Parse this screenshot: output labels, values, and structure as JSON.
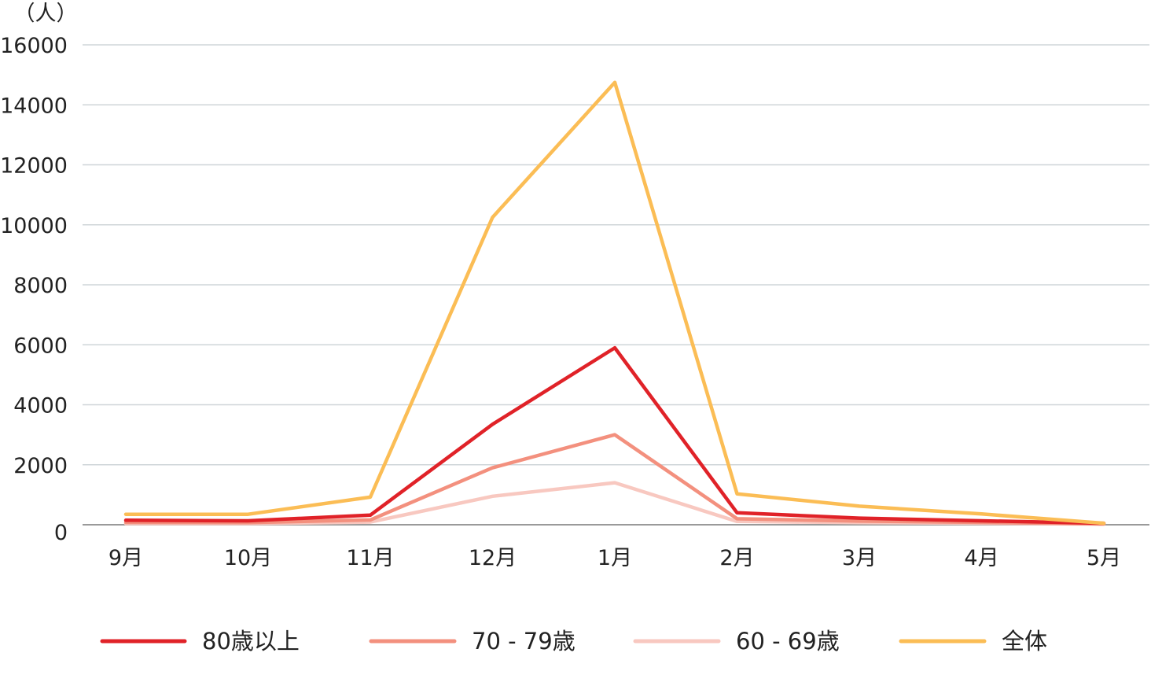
{
  "chart_data": {
    "type": "line",
    "unit_label": "（人）",
    "categories": [
      "9月",
      "10月",
      "11月",
      "12月",
      "1月",
      "2月",
      "3月",
      "4月",
      "5月"
    ],
    "y_ticks": [
      "0",
      "2000",
      "4000",
      "6000",
      "8000",
      "10000",
      "12000",
      "14000",
      "16000"
    ],
    "ylim": [
      0,
      16000
    ],
    "grid": true,
    "legend_position": "bottom",
    "series": [
      {
        "name": "80歳以上",
        "color": "#e02228",
        "values": [
          150,
          130,
          320,
          3350,
          5900,
          400,
          220,
          130,
          50
        ]
      },
      {
        "name": "70 - 79歳",
        "color": "#f3907e",
        "values": [
          80,
          70,
          160,
          1900,
          3000,
          200,
          120,
          80,
          30
        ]
      },
      {
        "name": "60 - 69歳",
        "color": "#f8c8c0",
        "values": [
          40,
          40,
          90,
          950,
          1400,
          110,
          70,
          50,
          20
        ]
      },
      {
        "name": "全体",
        "color": "#fbbd55",
        "values": [
          350,
          350,
          920,
          10250,
          14750,
          1030,
          620,
          360,
          50
        ]
      }
    ]
  }
}
